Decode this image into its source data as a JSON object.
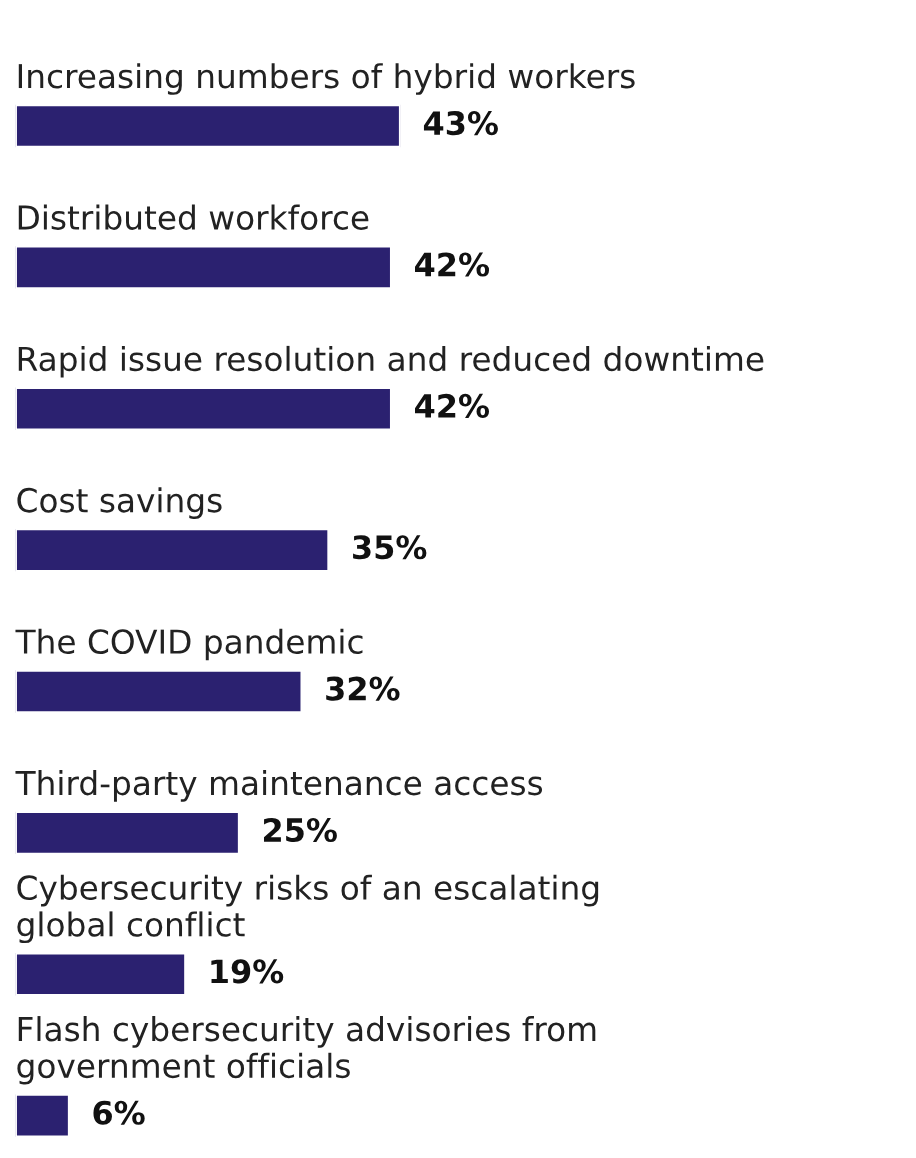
{
  "chart_data": {
    "type": "bar",
    "orientation": "horizontal",
    "categories": [
      "Increasing numbers of hybrid workers",
      "Distributed workforce",
      "Rapid issue resolution and reduced downtime",
      "Cost savings",
      "The COVID pandemic",
      "Third-party maintenance access",
      "Cybersecurity risks of an escalating\nglobal conflict",
      "Flash cybersecurity advisories from\ngovernment officials"
    ],
    "values": [
      43,
      42,
      42,
      35,
      32,
      25,
      19,
      6
    ],
    "value_labels": [
      "43%",
      "42%",
      "42%",
      "35%",
      "32%",
      "25%",
      "19%",
      "6%"
    ],
    "color": "#2b2170"
  }
}
